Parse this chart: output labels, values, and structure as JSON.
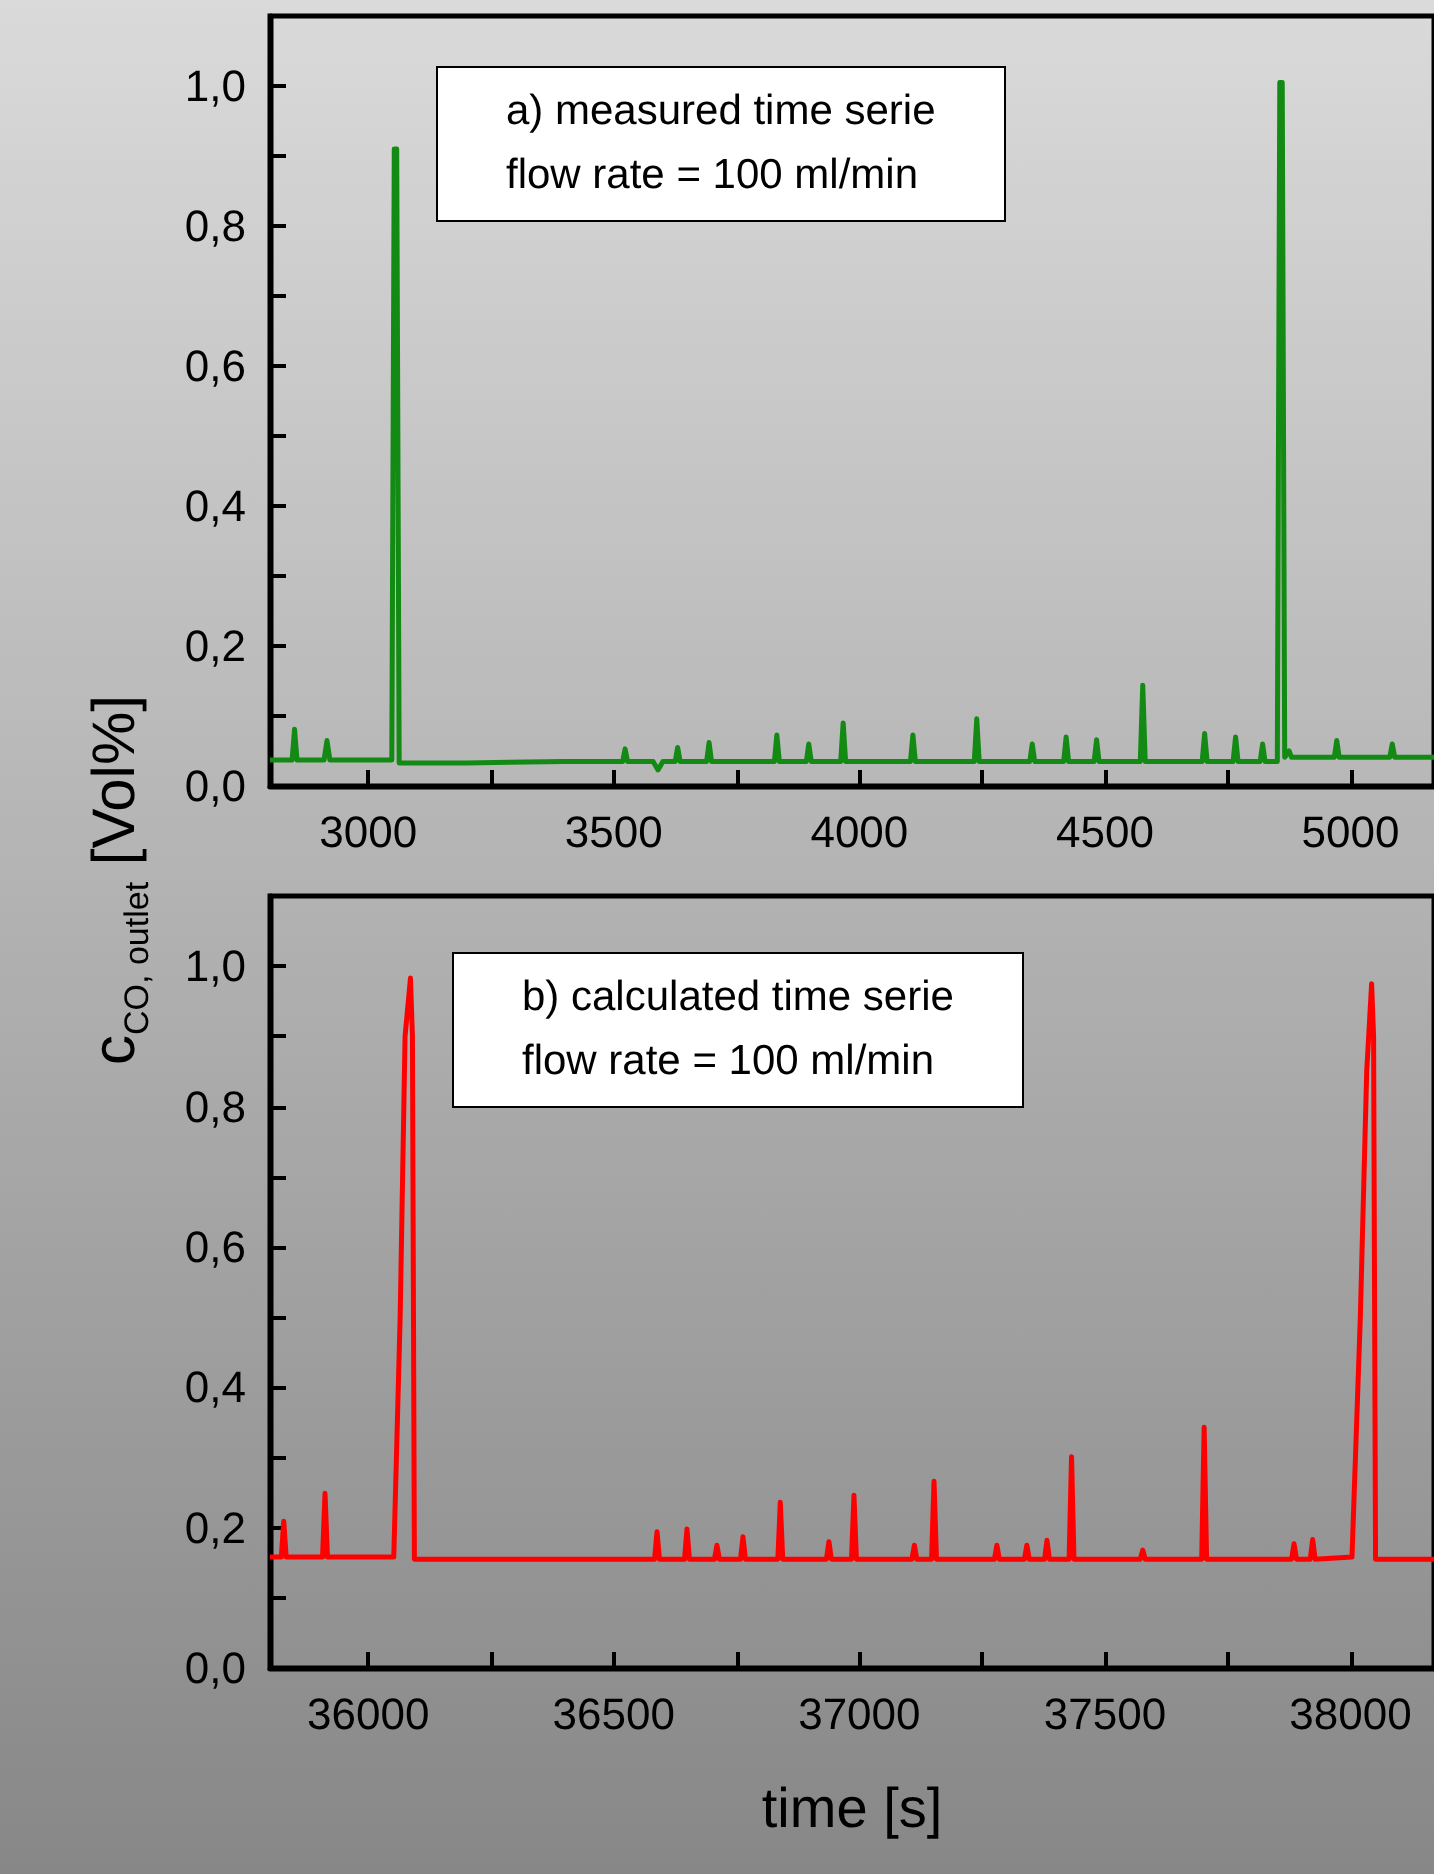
{
  "chart_data": [
    {
      "type": "line",
      "ylabel": "c$_{CO, outlet}$ [Vol%]",
      "annotations": [
        "a) measured time serie\nflow rate = 100 ml/min"
      ],
      "xlim": [
        2800,
        5170
      ],
      "xticks": [
        3000,
        {
          "value": 3250,
          "label": null
        },
        3500,
        {
          "value": 3750,
          "label": null
        },
        4000,
        {
          "value": 4250,
          "label": null
        },
        4500,
        {
          "value": 4750,
          "label": null
        },
        5000
      ],
      "ylim": [
        0,
        1.1
      ],
      "yticks": [
        {
          "value": 0,
          "label": "0,0"
        },
        {
          "value": 0.1,
          "label": null
        },
        {
          "value": 0.2,
          "label": "0,2"
        },
        {
          "value": 0.3,
          "label": null
        },
        {
          "value": 0.4,
          "label": "0,4"
        },
        {
          "value": 0.5,
          "label": null
        },
        {
          "value": 0.6,
          "label": "0,6"
        },
        {
          "value": 0.7,
          "label": null
        },
        {
          "value": 0.8,
          "label": "0,8"
        },
        {
          "value": 0.9,
          "label": null
        },
        {
          "value": 1.0,
          "label": "1,0"
        }
      ],
      "grid": false,
      "marker": "none",
      "line_style": "solid",
      "series": [
        {
          "color": "#138a13",
          "x": [
            2800,
            2845,
            2850,
            2855,
            2910,
            2916,
            2922,
            3000,
            3048,
            3053,
            3058,
            3063,
            3200,
            3400,
            3518,
            3523,
            3528,
            3580,
            3590,
            3600,
            3625,
            3630,
            3635,
            3689,
            3694,
            3699,
            3827,
            3832,
            3837,
            3892,
            3897,
            3902,
            3962,
            3967,
            3972,
            4104,
            4109,
            4114,
            4234,
            4239,
            4244,
            4347,
            4352,
            4357,
            4416,
            4421,
            4426,
            4478,
            4483,
            4488,
            4572,
            4577,
            4582,
            4698,
            4703,
            4708,
            4761,
            4766,
            4771,
            4816,
            4821,
            4826,
            4851,
            4856,
            4861,
            4866,
            4875,
            4880,
            4967,
            4972,
            4977,
            5080,
            5085,
            5090,
            5170
          ],
          "values": [
            0.037,
            0.037,
            0.081,
            0.037,
            0.037,
            0.065,
            0.037,
            0.037,
            0.037,
            0.91,
            0.91,
            0.033,
            0.033,
            0.035,
            0.035,
            0.053,
            0.035,
            0.035,
            0.023,
            0.035,
            0.035,
            0.055,
            0.035,
            0.035,
            0.062,
            0.035,
            0.035,
            0.073,
            0.035,
            0.035,
            0.06,
            0.035,
            0.035,
            0.09,
            0.035,
            0.035,
            0.073,
            0.035,
            0.035,
            0.096,
            0.035,
            0.035,
            0.06,
            0.035,
            0.035,
            0.07,
            0.035,
            0.035,
            0.066,
            0.035,
            0.035,
            0.144,
            0.035,
            0.035,
            0.075,
            0.035,
            0.035,
            0.07,
            0.035,
            0.035,
            0.06,
            0.035,
            0.035,
            1.005,
            1.005,
            0.041,
            0.05,
            0.041,
            0.041,
            0.065,
            0.041,
            0.041,
            0.06,
            0.041,
            0.041
          ]
        }
      ]
    },
    {
      "type": "line",
      "xlabel": "time [s]",
      "annotations": [
        "b) calculated time serie\nflow rate = 100 ml/min"
      ],
      "xlim": [
        35800,
        38170
      ],
      "xticks": [
        36000,
        {
          "value": 36250,
          "label": null
        },
        36500,
        {
          "value": 36750,
          "label": null
        },
        37000,
        {
          "value": 37250,
          "label": null
        },
        37500,
        {
          "value": 37750,
          "label": null
        },
        38000
      ],
      "ylim": [
        0,
        1.1
      ],
      "yticks": [
        {
          "value": 0,
          "label": "0,0"
        },
        {
          "value": 0.1,
          "label": null
        },
        {
          "value": 0.2,
          "label": "0,2"
        },
        {
          "value": 0.3,
          "label": null
        },
        {
          "value": 0.4,
          "label": "0,4"
        },
        {
          "value": 0.5,
          "label": null
        },
        {
          "value": 0.6,
          "label": "0,6"
        },
        {
          "value": 0.7,
          "label": null
        },
        {
          "value": 0.8,
          "label": "0,8"
        },
        {
          "value": 0.9,
          "label": null
        },
        {
          "value": 1.0,
          "label": "1,0"
        }
      ],
      "grid": false,
      "marker": "none",
      "line_style": "solid",
      "series": [
        {
          "color": "#ff0000",
          "x": [
            35800,
            35823,
            35828,
            35833,
            35907,
            35912,
            35917,
            36052,
            36065,
            36075,
            36086,
            36090,
            36094,
            36300,
            36583,
            36588,
            36593,
            36644,
            36649,
            36654,
            36705,
            36710,
            36715,
            36758,
            36763,
            36768,
            36834,
            36839,
            36844,
            36933,
            36938,
            36943,
            36984,
            36989,
            36994,
            37107,
            37112,
            37117,
            37147,
            37152,
            37157,
            37275,
            37280,
            37285,
            37336,
            37341,
            37346,
            37377,
            37382,
            37387,
            37427,
            37432,
            37437,
            37572,
            37577,
            37582,
            37697,
            37702,
            37707,
            37880,
            37885,
            37890,
            37918,
            37923,
            37928,
            38003,
            38020,
            38033,
            38043,
            38047,
            38051,
            38170
          ],
          "values": [
            0.158,
            0.158,
            0.209,
            0.158,
            0.158,
            0.249,
            0.158,
            0.158,
            0.5,
            0.9,
            0.983,
            0.9,
            0.155,
            0.155,
            0.155,
            0.194,
            0.155,
            0.155,
            0.198,
            0.155,
            0.155,
            0.175,
            0.155,
            0.155,
            0.187,
            0.155,
            0.155,
            0.236,
            0.155,
            0.155,
            0.18,
            0.155,
            0.155,
            0.246,
            0.155,
            0.155,
            0.175,
            0.155,
            0.155,
            0.266,
            0.155,
            0.155,
            0.175,
            0.155,
            0.155,
            0.175,
            0.155,
            0.155,
            0.182,
            0.155,
            0.155,
            0.301,
            0.155,
            0.155,
            0.168,
            0.155,
            0.155,
            0.343,
            0.155,
            0.155,
            0.177,
            0.155,
            0.155,
            0.183,
            0.155,
            0.158,
            0.5,
            0.85,
            0.975,
            0.9,
            0.155,
            0.155
          ]
        }
      ]
    }
  ]
}
